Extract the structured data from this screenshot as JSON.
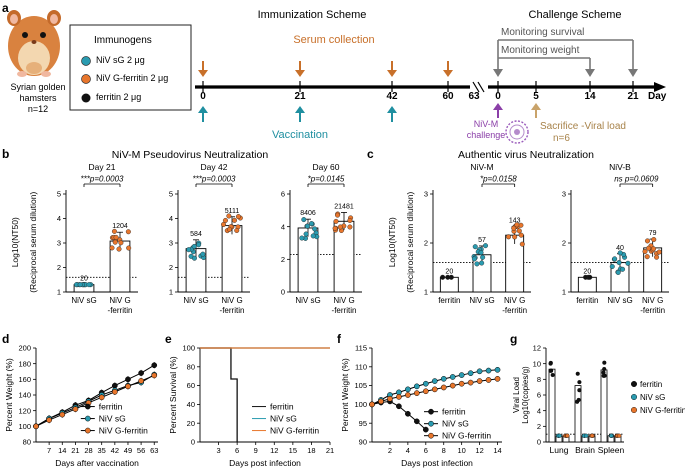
{
  "panel_labels": {
    "a": "a",
    "b": "b",
    "c": "c",
    "d": "d",
    "e": "e",
    "f": "f",
    "g": "g"
  },
  "colors": {
    "teal": "#2a9bb0",
    "orange": "#e8762c",
    "black": "#111111",
    "purple": "#8b3fa8",
    "tan": "#c9a36a",
    "grey": "#777777",
    "hamster": "#d9823f"
  },
  "panel_a": {
    "hamster_caption": [
      "Syrian golden",
      "hamsters",
      "n=12"
    ],
    "legend_title": "Immunogens",
    "legend": [
      {
        "label": "NiV sG 2 μg",
        "color": "#2a9bb0"
      },
      {
        "label": "NiV G-ferritin 2 μg",
        "color": "#e8762c"
      },
      {
        "label": "ferritin 2 μg",
        "color": "#111111"
      }
    ],
    "immunization_title": "Immunization Scheme",
    "serum_collection": "Serum collection",
    "vaccination": "Vaccination",
    "timeline_ticks": [
      "0",
      "21",
      "42",
      "60",
      "63"
    ],
    "challenge_title": "Challenge Scheme",
    "monitoring_survival": "Monitoring survival",
    "monitoring_weight": "Monitoring weight",
    "challenge_ticks": [
      "0",
      "5",
      "14",
      "21"
    ],
    "day_label": "Day",
    "challenge_label": [
      "NiV-M",
      "challenge"
    ],
    "sacrifice_label": "Sacrifice -Viral load",
    "sacrifice_n": "n=6"
  },
  "panel_b": {
    "title": "NiV-M Pseudovirus Neutralization",
    "ylabel_main": "Log10(NT50)",
    "ylabel_sub": "(Reciprocal serum dilution)",
    "subpanels": [
      {
        "day": "Day 21",
        "ymin": 1,
        "ymax": 5,
        "ticks": [
          "1",
          "2",
          "3",
          "4",
          "5"
        ],
        "bars": [
          {
            "cat": "NiV sG",
            "mean": 1.3,
            "label": "20",
            "color": "#2a9bb0"
          },
          {
            "cat": "NiV G\n-ferritin",
            "mean": 3.08,
            "label": "1204",
            "color": "#e8762c"
          }
        ],
        "sig": "***p=0.0003",
        "dotted": 1.6
      },
      {
        "day": "Day 42",
        "ymin": 1,
        "ymax": 5,
        "ticks": [
          "1",
          "2",
          "3",
          "4",
          "5"
        ],
        "bars": [
          {
            "cat": "NiV sG",
            "mean": 2.77,
            "label": "584",
            "color": "#2a9bb0"
          },
          {
            "cat": "NiV G\n-ferritin",
            "mean": 3.71,
            "label": "5111",
            "color": "#e8762c"
          }
        ],
        "sig": "***p=0.0003",
        "dotted": 1.6
      },
      {
        "day": "Day 60",
        "ymin": 0,
        "ymax": 6,
        "ticks": [
          "0",
          "2",
          "4",
          "6"
        ],
        "bars": [
          {
            "cat": "NiV sG",
            "mean": 3.92,
            "label": "8406",
            "color": "#2a9bb0"
          },
          {
            "cat": "NiV G\n-ferritin",
            "mean": 4.33,
            "label": "21481",
            "color": "#e8762c"
          }
        ],
        "sig": "*p=0.0145",
        "dotted": 2.3
      }
    ]
  },
  "panel_c": {
    "title": "Authentic virus Neutralization",
    "ylabel_main": "Log10(NT50)",
    "ylabel_sub": "(Reciprocal serum dilution)",
    "subpanels": [
      {
        "name": "NiV-M",
        "ymin": 1,
        "ymax": 3,
        "ticks": [
          "1",
          "2",
          "3"
        ],
        "bars": [
          {
            "cat": "ferritin",
            "mean": 1.3,
            "label": "20",
            "color": "#111111"
          },
          {
            "cat": "NiV sG",
            "mean": 1.76,
            "label": "57",
            "color": "#2a9bb0"
          },
          {
            "cat": "NiV G\n-ferritin",
            "mean": 2.16,
            "label": "143",
            "color": "#e8762c"
          }
        ],
        "sig": "*p=0.0158",
        "dotted": 1.6
      },
      {
        "name": "NiV-B",
        "ymin": 1,
        "ymax": 3,
        "ticks": [
          "1",
          "2",
          "3"
        ],
        "bars": [
          {
            "cat": "ferritin",
            "mean": 1.3,
            "label": "20",
            "color": "#111111"
          },
          {
            "cat": "NiV sG",
            "mean": 1.6,
            "label": "40",
            "color": "#2a9bb0"
          },
          {
            "cat": "NiV G\n-ferritin",
            "mean": 1.9,
            "label": "79",
            "color": "#e8762c"
          }
        ],
        "sig": "ns p=0.0609",
        "dotted": 1.6
      }
    ]
  },
  "chart_data": [
    {
      "type": "line",
      "id": "d",
      "ylabel": "Percent Weight (%)",
      "xlabel": "Days after vaccination",
      "x": [
        0,
        7,
        14,
        21,
        28,
        35,
        42,
        49,
        56,
        63
      ],
      "xticks": [
        "7",
        "14",
        "21",
        "28",
        "35",
        "42",
        "49",
        "56",
        "63"
      ],
      "ylim": [
        80,
        200
      ],
      "yticks": [
        "80",
        "100",
        "120",
        "140",
        "160",
        "180",
        "200"
      ],
      "series": [
        {
          "name": "ferritin",
          "color": "#111111",
          "values": [
            100,
            110,
            118,
            127,
            133,
            143,
            152,
            160,
            168,
            178
          ]
        },
        {
          "name": "NiV sG",
          "color": "#2a9bb0",
          "values": [
            100,
            110,
            117,
            124,
            132,
            140,
            146,
            152,
            156,
            166
          ]
        },
        {
          "name": "NiV G-ferritin",
          "color": "#e8762c",
          "values": [
            100,
            108,
            115,
            122,
            130,
            137,
            144,
            151,
            158,
            165
          ]
        }
      ]
    },
    {
      "type": "line",
      "id": "e",
      "ylabel": "Percent Survival (%)",
      "xlabel": "Days post infection",
      "xticks": [
        "3",
        "6",
        "9",
        "12",
        "15",
        "18",
        "21"
      ],
      "ylim": [
        0,
        100
      ],
      "yticks": [
        "0",
        "20",
        "40",
        "60",
        "80",
        "100"
      ],
      "series": [
        {
          "name": "ferritin",
          "color": "#111111",
          "x": [
            0,
            5,
            5,
            6,
            6
          ],
          "values": [
            100,
            100,
            67,
            67,
            0
          ]
        },
        {
          "name": "NiV sG",
          "color": "#2a9bb0",
          "x": [
            0,
            21
          ],
          "values": [
            100,
            100
          ]
        },
        {
          "name": "NiV G-ferritin",
          "color": "#e8762c",
          "x": [
            0,
            21
          ],
          "values": [
            100,
            100
          ]
        }
      ]
    },
    {
      "type": "line",
      "id": "f",
      "ylabel": "Percent Weight (%)",
      "xlabel": "Days post infection",
      "xticks": [
        "2",
        "4",
        "6",
        "8",
        "10",
        "12",
        "14"
      ],
      "ylim": [
        90,
        115
      ],
      "yticks": [
        "90",
        "95",
        "100",
        "105",
        "110",
        "115"
      ],
      "series": [
        {
          "name": "ferritin",
          "color": "#111111",
          "x": [
            0,
            1,
            2,
            3,
            4,
            5,
            6
          ],
          "values": [
            100,
            100.5,
            100.8,
            99.5,
            97.5,
            95.5,
            93.3
          ]
        },
        {
          "name": "NiV sG",
          "color": "#2a9bb0",
          "x": [
            0,
            1,
            2,
            3,
            4,
            5,
            6,
            7,
            8,
            9,
            10,
            11,
            12,
            13,
            14
          ],
          "values": [
            100,
            101.2,
            102.5,
            103.2,
            104,
            104.8,
            105.5,
            106.2,
            106.8,
            107.3,
            107.8,
            108.3,
            108.8,
            109,
            109.2
          ]
        },
        {
          "name": "NiV G-ferritin",
          "color": "#e8762c",
          "x": [
            0,
            1,
            2,
            3,
            4,
            5,
            6,
            7,
            8,
            9,
            10,
            11,
            12,
            13,
            14
          ],
          "values": [
            100,
            100.8,
            101.5,
            102,
            102.5,
            103,
            103.5,
            104,
            104.5,
            105,
            105.5,
            105.8,
            106.2,
            106.5,
            106.8
          ]
        }
      ]
    },
    {
      "type": "bar",
      "id": "g",
      "ylabel": "Viral Load Log10(copies/g)",
      "categories": [
        "Lung",
        "Brain",
        "Spleen"
      ],
      "ylim": [
        0,
        12
      ],
      "yticks": [
        "0",
        "2",
        "4",
        "6",
        "8",
        "10",
        "12"
      ],
      "dotted": 1,
      "series": [
        {
          "name": "ferritin",
          "color": "#111111",
          "values": [
            9.3,
            7.2,
            9.2
          ]
        },
        {
          "name": "NiV sG",
          "color": "#2a9bb0",
          "values": [
            0.8,
            0.8,
            0.8
          ]
        },
        {
          "name": "NiV G-ferritin",
          "color": "#e8762c",
          "values": [
            0.8,
            0.8,
            0.8
          ]
        }
      ]
    }
  ]
}
